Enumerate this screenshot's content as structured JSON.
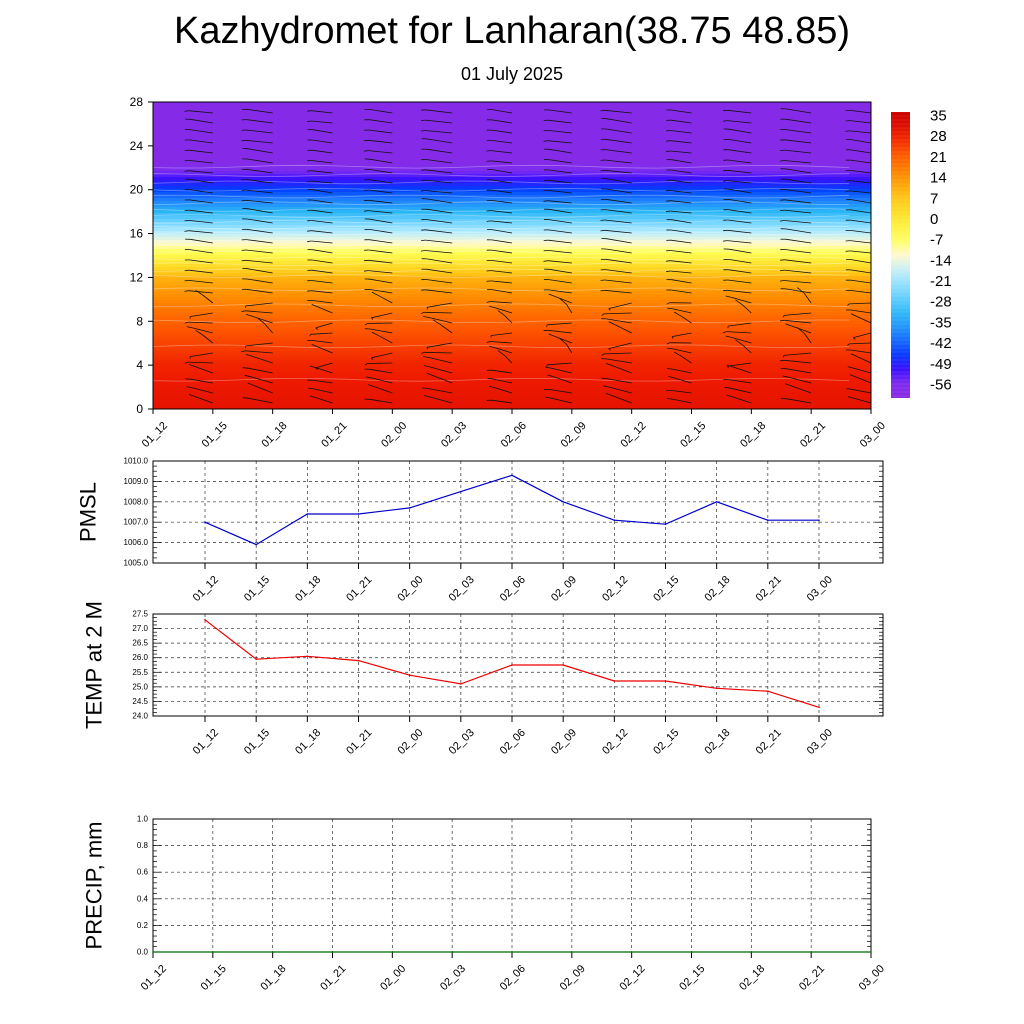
{
  "header": {
    "title": "Kazhydromet for Lanharan(38.75 48.85)",
    "date": "01 July 2025"
  },
  "chart_data": [
    {
      "type": "heatmap",
      "title": "",
      "xlabel": "",
      "ylabel": "",
      "x_ticks": [
        "01_12",
        "01_15",
        "01_18",
        "01_21",
        "02_00",
        "02_03",
        "02_06",
        "02_09",
        "02_12",
        "02_15",
        "02_18",
        "02_21",
        "03_00"
      ],
      "y_ticks": [
        0,
        4,
        8,
        12,
        16,
        20,
        24,
        28
      ],
      "ylim": [
        0,
        28
      ],
      "colorbar_ticks": [
        35,
        28,
        21,
        14,
        7,
        0,
        -7,
        -14,
        -21,
        -28,
        -35,
        -42,
        -49,
        -56
      ],
      "temperature_profile": [
        {
          "level": 0,
          "value": 30
        },
        {
          "level": 4,
          "value": 27
        },
        {
          "level": 8,
          "value": 20
        },
        {
          "level": 12,
          "value": 9
        },
        {
          "level": 14,
          "value": -6
        },
        {
          "level": 16,
          "value": -20
        },
        {
          "level": 18,
          "value": -35
        },
        {
          "level": 20,
          "value": -48
        },
        {
          "level": 21.5,
          "value": -57
        },
        {
          "level": 22.5,
          "value": -62
        },
        {
          "level": 28,
          "value": -62
        }
      ],
      "wind_barbs": "wind barb symbols overlaid at each time column",
      "colors": {
        "high": "#cc0000",
        "mid": "#ffff66",
        "low": "#0033ff",
        "top": "#8a2be2"
      }
    },
    {
      "type": "line",
      "ylabel": "PMSL",
      "x": [
        "01_12",
        "01_15",
        "01_18",
        "01_21",
        "02_00",
        "02_03",
        "02_06",
        "02_09",
        "02_12",
        "02_15",
        "02_18",
        "02_21",
        "03_00"
      ],
      "values": [
        1007.0,
        1005.9,
        1007.4,
        1007.4,
        1007.7,
        1008.5,
        1009.3,
        1008.0,
        1007.1,
        1006.9,
        1008.0,
        1007.1,
        1007.1
      ],
      "ylim": [
        1005.0,
        1010.0
      ],
      "y_ticks": [
        "1005.0",
        "1006.0",
        "1007.0",
        "1008.0",
        "1009.0",
        "1010.0"
      ],
      "grid": true,
      "color": "#0000cc"
    },
    {
      "type": "line",
      "ylabel": "TEMP at 2 M",
      "x": [
        "01_12",
        "01_15",
        "01_18",
        "01_21",
        "02_00",
        "02_03",
        "02_06",
        "02_09",
        "02_12",
        "02_15",
        "02_18",
        "02_21",
        "03_00"
      ],
      "values": [
        27.3,
        25.95,
        26.05,
        25.9,
        25.4,
        25.1,
        25.75,
        25.75,
        25.2,
        25.2,
        24.95,
        24.85,
        24.3
      ],
      "ylim": [
        24.0,
        27.5
      ],
      "y_ticks": [
        "24.0",
        "24.5",
        "25.0",
        "25.5",
        "26.0",
        "26.5",
        "27.0",
        "27.5"
      ],
      "grid": true,
      "color": "#ee0000"
    },
    {
      "type": "line",
      "ylabel": "PRECIP, mm",
      "x": [
        "01_12",
        "01_15",
        "01_18",
        "01_21",
        "02_00",
        "02_03",
        "02_06",
        "02_09",
        "02_12",
        "02_15",
        "02_18",
        "02_21",
        "03_00"
      ],
      "values": [
        0,
        0,
        0,
        0,
        0,
        0,
        0,
        0,
        0,
        0,
        0,
        0,
        0
      ],
      "ylim": [
        0.0,
        1.0
      ],
      "y_ticks": [
        "0.0",
        "0.2",
        "0.4",
        "0.6",
        "0.8",
        "1.0"
      ],
      "grid": true,
      "color": "#006600"
    }
  ]
}
